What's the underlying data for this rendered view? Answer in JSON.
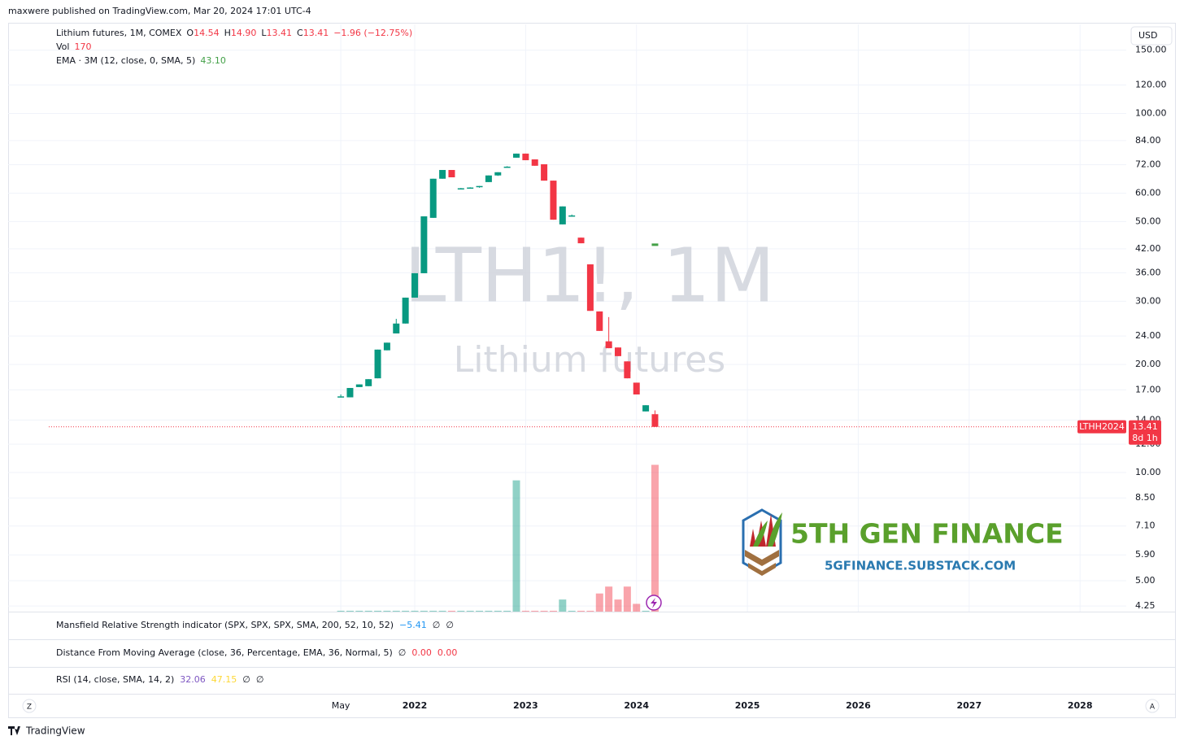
{
  "header": {
    "published": "maxwere published on TradingView.com, Mar 20, 2024 17:01 UTC-4",
    "brand": "TradingView"
  },
  "chart_data": {
    "type": "candlestick",
    "title": "Lithium futures, 1M, COMEX",
    "ohlc_prefixes": [
      "O",
      "H",
      "L",
      "C"
    ],
    "last_bar_labels": [
      "14.54",
      "14.90",
      "13.41",
      "13.41"
    ],
    "change": "−1.96 (−12.75%)",
    "watermark": "LTH1!, 1M",
    "watermark_subtitle": "Lithium futures",
    "x": [
      "2021-05",
      "2021-06",
      "2021-07",
      "2021-08",
      "2021-09",
      "2021-10",
      "2021-11",
      "2021-12",
      "2022-01",
      "2022-02",
      "2022-03",
      "2022-04",
      "2022-05",
      "2022-06",
      "2022-07",
      "2022-08",
      "2022-09",
      "2022-10",
      "2022-11",
      "2022-12",
      "2023-01",
      "2023-02",
      "2023-03",
      "2023-04",
      "2023-05",
      "2023-06",
      "2023-07",
      "2023-08",
      "2023-09",
      "2023-10",
      "2023-11",
      "2023-12",
      "2024-01",
      "2024-02",
      "2024-03"
    ],
    "open": [
      16.2,
      16.2,
      17.3,
      17.4,
      18.3,
      21.9,
      24.4,
      26.0,
      30.7,
      35.9,
      51.2,
      65.8,
      69.6,
      61.8,
      62.0,
      62.4,
      64.4,
      67.2,
      70.8,
      75.3,
      77.3,
      74.5,
      72.2,
      65.0,
      49.1,
      51.8,
      45.1,
      38.0,
      28.1,
      23.2,
      22.3,
      20.4,
      17.8,
      14.8,
      14.54
    ],
    "high": [
      16.5,
      17.2,
      17.6,
      18.2,
      22.0,
      23.0,
      26.8,
      30.7,
      35.9,
      51.7,
      65.8,
      69.6,
      69.6,
      62.0,
      62.3,
      62.8,
      67.2,
      68.6,
      71.3,
      77.3,
      77.3,
      74.5,
      72.2,
      65.0,
      55.1,
      52.3,
      45.1,
      38.0,
      28.1,
      27.1,
      22.3,
      20.4,
      17.8,
      15.4,
      14.9
    ],
    "low": [
      16.2,
      16.2,
      17.3,
      17.4,
      18.3,
      21.9,
      24.4,
      26.0,
      30.7,
      35.9,
      51.2,
      65.8,
      66.4,
      61.6,
      62.0,
      62.1,
      64.4,
      67.0,
      70.8,
      75.3,
      74.1,
      71.5,
      65.0,
      50.6,
      49.1,
      51.6,
      43.5,
      28.2,
      24.8,
      22.2,
      21.1,
      18.3,
      16.5,
      14.8,
      13.41
    ],
    "close": [
      16.3,
      17.2,
      17.6,
      18.2,
      22.0,
      23.0,
      26.0,
      30.7,
      35.9,
      51.7,
      65.8,
      69.6,
      66.4,
      61.9,
      62.2,
      62.8,
      67.2,
      68.6,
      71.1,
      77.3,
      74.1,
      71.5,
      65.0,
      50.6,
      55.1,
      52.0,
      43.5,
      28.2,
      24.8,
      22.2,
      21.1,
      18.3,
      16.5,
      15.4,
      13.41
    ],
    "up_color": "#089981",
    "down_color": "#f23645",
    "volume_label": "Vol",
    "volume": [
      1,
      1,
      1,
      1,
      1,
      1,
      1,
      1,
      1,
      1,
      1,
      1,
      1,
      1,
      1,
      1,
      1,
      1,
      1,
      152,
      1,
      1,
      1,
      1,
      14,
      1,
      1,
      1,
      21,
      29,
      14,
      29,
      9,
      1,
      170
    ],
    "ema": {
      "label": "EMA · 3M (12, close, 0, SMA, 5)",
      "value": 43.1,
      "value_label": "43.10",
      "x": "2024-03",
      "color": "#43a047"
    },
    "log": true,
    "grid": true,
    "ylim": [
      4.1,
      177
    ],
    "yticks": [
      {
        "value": 150,
        "label": "150.00"
      },
      {
        "value": 120,
        "label": "120.00"
      },
      {
        "value": 100,
        "label": "100.00"
      },
      {
        "value": 84,
        "label": "84.00"
      },
      {
        "value": 72,
        "label": "72.00"
      },
      {
        "value": 60,
        "label": "60.00"
      },
      {
        "value": 50,
        "label": "50.00"
      },
      {
        "value": 42,
        "label": "42.00"
      },
      {
        "value": 36,
        "label": "36.00"
      },
      {
        "value": 30,
        "label": "30.00"
      },
      {
        "value": 24,
        "label": "24.00"
      },
      {
        "value": 20,
        "label": "20.00"
      },
      {
        "value": 17,
        "label": "17.00"
      },
      {
        "value": 14,
        "label": "14.00"
      },
      {
        "value": 12,
        "label": "12.00"
      },
      {
        "value": 10,
        "label": "10.00"
      },
      {
        "value": 8.5,
        "label": "8.50"
      },
      {
        "value": 7.1,
        "label": "7.10"
      },
      {
        "value": 5.9,
        "label": "5.90"
      },
      {
        "value": 5,
        "label": "5.00"
      },
      {
        "value": 4.25,
        "label": "4.25"
      }
    ],
    "xlim": [
      "2018-05",
      "2028-06"
    ],
    "xticks": [
      {
        "value": "2021-05",
        "label": "May"
      },
      {
        "value": "2022-01",
        "label": "2022"
      },
      {
        "value": "2023-01",
        "label": "2023"
      },
      {
        "value": "2024-01",
        "label": "2024"
      },
      {
        "value": "2025-01",
        "label": "2025"
      },
      {
        "value": "2026-01",
        "label": "2026"
      },
      {
        "value": "2027-01",
        "label": "2027"
      },
      {
        "value": "2028-01",
        "label": "2028"
      }
    ],
    "currency": "USD",
    "contract": "LTHH2024",
    "countdown": "8d 1h",
    "scale_buttons": [
      "Z",
      "A"
    ]
  },
  "indicators": [
    {
      "label": "Mansfield Relative Strength indicator (SPX, SPX, SPX, SMA, 200, 52, 10, 52)",
      "values": [
        "−5.41",
        "∅",
        "∅"
      ],
      "colors": [
        "#2196f3",
        "#131722",
        "#131722"
      ]
    },
    {
      "label": "Distance From Moving Average (close, 36, Percentage, EMA, 36, Normal, 5)",
      "values": [
        "∅",
        "0.00",
        "0.00"
      ],
      "colors": [
        "#131722",
        "#f23645",
        "#f23645"
      ]
    },
    {
      "label": "RSI (14, close, SMA, 14, 2)",
      "values": [
        "32.06",
        "47.15",
        "∅",
        "∅"
      ],
      "colors": [
        "#7e57c2",
        "#fdd835",
        "#131722",
        "#131722"
      ]
    }
  ],
  "logo": {
    "title": "5TH GEN FINANCE",
    "url": "5GFINANCE.SUBSTACK.COM"
  }
}
